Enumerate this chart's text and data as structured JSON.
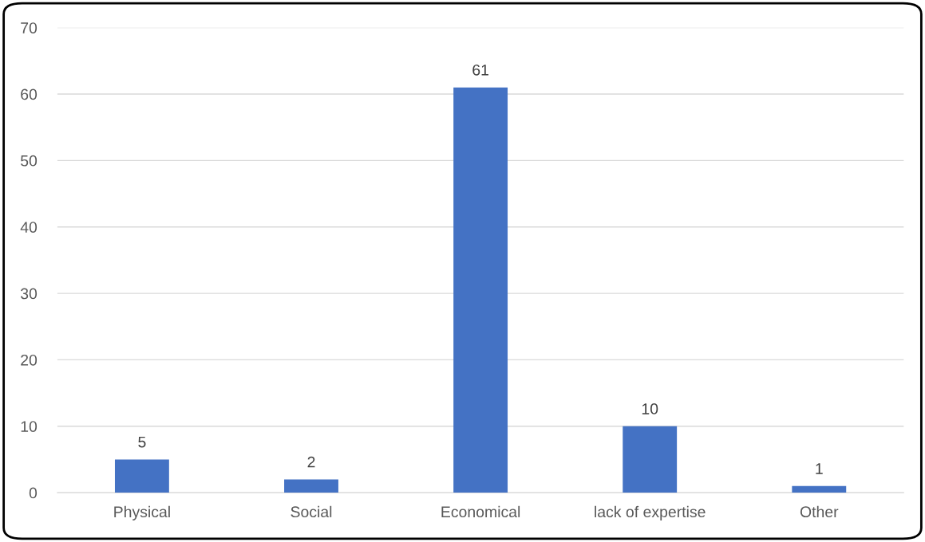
{
  "chart_data": {
    "type": "bar",
    "categories": [
      "Physical",
      "Social",
      "Economical",
      "lack of expertise",
      "Other"
    ],
    "values": [
      5,
      2,
      61,
      10,
      1
    ],
    "color": "#4472c4",
    "ylim": [
      0,
      70
    ],
    "yticks": [
      0,
      10,
      20,
      30,
      40,
      50,
      60,
      70
    ],
    "grid": "y",
    "data_labels": true
  }
}
